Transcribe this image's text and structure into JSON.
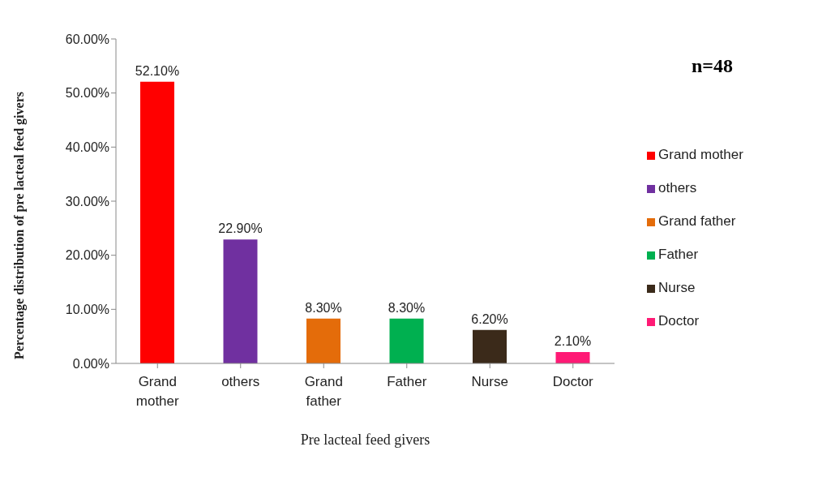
{
  "chart_data": {
    "type": "bar",
    "xlabel": "Pre lacteal feed givers",
    "ylabel": "Percentage distribution of pre lacteal feed givers",
    "categories": [
      "Grand mother",
      "others",
      "Grand father",
      "Father",
      "Nurse",
      "Doctor"
    ],
    "stacked": true,
    "series": [
      {
        "name": "Grand mother",
        "color": "#ff0000",
        "values": [
          52.1,
          null,
          null,
          null,
          null,
          null
        ],
        "value_labels": [
          "52.10%",
          null,
          null,
          null,
          null,
          null
        ]
      },
      {
        "name": "others",
        "color": "#7030a0",
        "values": [
          null,
          22.9,
          null,
          null,
          null,
          null
        ],
        "value_labels": [
          null,
          "22.90%",
          null,
          null,
          null,
          null
        ]
      },
      {
        "name": "Grand father",
        "color": "#e46c0a",
        "values": [
          null,
          null,
          8.3,
          null,
          null,
          null
        ],
        "value_labels": [
          null,
          null,
          "8.30%",
          null,
          null,
          null
        ]
      },
      {
        "name": "Father",
        "color": "#00b050",
        "values": [
          null,
          null,
          null,
          8.3,
          null,
          null
        ],
        "value_labels": [
          null,
          null,
          null,
          "8.30%",
          null,
          null
        ]
      },
      {
        "name": "Nurse",
        "color": "#3b2a1a",
        "values": [
          null,
          null,
          null,
          null,
          6.2,
          null
        ],
        "value_labels": [
          null,
          null,
          null,
          null,
          "6.20%",
          null
        ]
      },
      {
        "name": "Doctor",
        "color": "#ff1a75",
        "values": [
          null,
          null,
          null,
          null,
          null,
          2.1
        ],
        "value_labels": [
          null,
          null,
          null,
          null,
          null,
          "2.10%"
        ]
      }
    ],
    "ylim": [
      0,
      60
    ],
    "yticks": [
      {
        "value": 0,
        "label": "0.00%"
      },
      {
        "value": 10,
        "label": "10.00%"
      },
      {
        "value": 20,
        "label": "20.00%"
      },
      {
        "value": 30,
        "label": "30.00%"
      },
      {
        "value": 40,
        "label": "40.00%"
      },
      {
        "value": 50,
        "label": "50.00%"
      },
      {
        "value": 60,
        "label": "60.00%"
      }
    ],
    "annotations": [
      "n=48"
    ],
    "legend": "right",
    "grid": false
  }
}
